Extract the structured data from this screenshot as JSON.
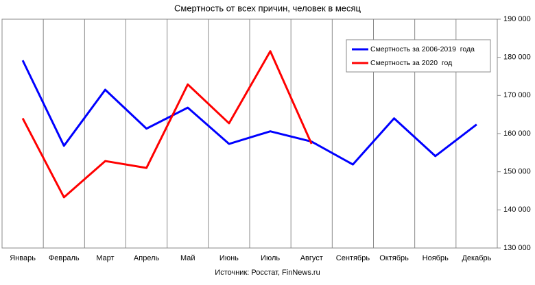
{
  "chart_data": {
    "type": "line",
    "title": "Смертность от всех причин, человек в месяц",
    "subtitle": "Источник: Росстат, FinNews.ru",
    "categories": [
      "Январь",
      "Февраль",
      "Март",
      "Апрель",
      "Май",
      "Июнь",
      "Июль",
      "Август",
      "Сентябрь",
      "Октябрь",
      "Ноябрь",
      "Декабрь"
    ],
    "series": [
      {
        "name": "Смертность за 2006-2019  года",
        "color": "#0000ff",
        "values": [
          179200,
          156800,
          171500,
          161300,
          166800,
          157300,
          160600,
          157900,
          151900,
          164000,
          154100,
          162400
        ]
      },
      {
        "name": "Смертность за 2020  год",
        "color": "#ff0000",
        "values": [
          164000,
          143300,
          152800,
          151000,
          172900,
          162700,
          181600,
          157300,
          null,
          null,
          null,
          null
        ]
      }
    ],
    "ylim": [
      130000,
      190000
    ],
    "yticks": [
      {
        "value": 130000,
        "label": "130 000"
      },
      {
        "value": 140000,
        "label": "140 000"
      },
      {
        "value": 150000,
        "label": "150 000"
      },
      {
        "value": 160000,
        "label": "160 000"
      },
      {
        "value": 170000,
        "label": "170 000"
      },
      {
        "value": 180000,
        "label": "180 000"
      },
      {
        "value": 190000,
        "label": "190 000"
      }
    ],
    "legend": "upper right"
  }
}
